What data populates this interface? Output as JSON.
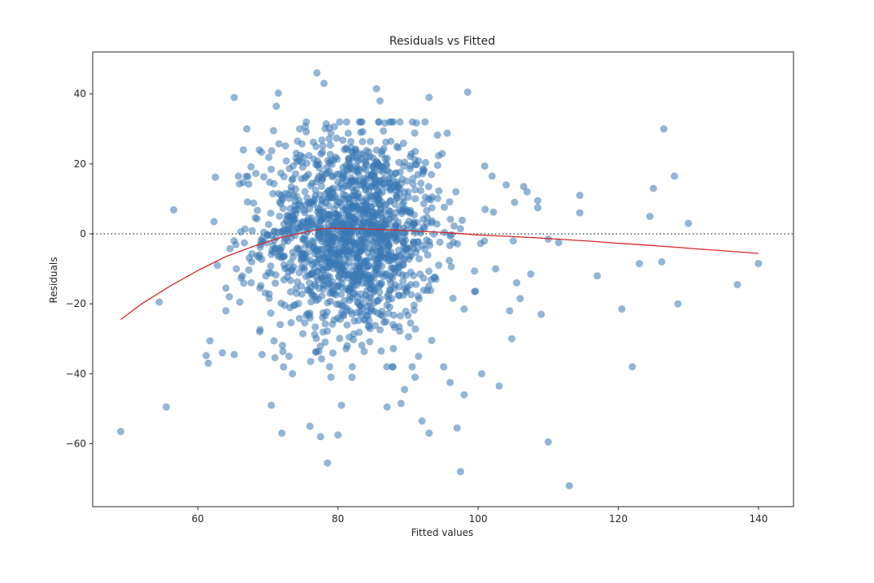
{
  "chart_data": {
    "type": "scatter",
    "title": "Residuals vs Fitted",
    "xlabel": "Fitted values",
    "ylabel": "Residuals",
    "xlim": [
      45,
      145
    ],
    "ylim": [
      -78,
      52
    ],
    "xticks": [
      60,
      80,
      100,
      120,
      140
    ],
    "yticks": [
      40,
      20,
      0,
      -20,
      -40,
      -60
    ],
    "ytick_labels": [
      "40",
      "20",
      "0",
      "−20",
      "−40",
      "−60"
    ],
    "grid": false,
    "reference_line": {
      "y": 0,
      "style": "dotted",
      "color": "#555555"
    },
    "colors": {
      "points": "#3a78b5",
      "smoother": "#d62728"
    },
    "cloud": {
      "count": 1500,
      "x_mean": 82,
      "x_sd": 6.3,
      "y_sd": 14.5
    },
    "points": [
      [
        49,
        -56.5
      ],
      [
        54.5,
        -19.5
      ],
      [
        55.5,
        -49.5
      ],
      [
        61.2,
        -34.8
      ],
      [
        61.5,
        -37
      ],
      [
        62.5,
        16.2
      ],
      [
        62.8,
        -9
      ],
      [
        63.5,
        -34
      ],
      [
        64,
        -22
      ],
      [
        64,
        -15.5
      ],
      [
        64.5,
        -18
      ],
      [
        65.2,
        -34.5
      ],
      [
        65.2,
        39
      ],
      [
        65.5,
        -10
      ],
      [
        66,
        -19.5
      ],
      [
        66.5,
        24
      ],
      [
        67,
        30
      ],
      [
        70.5,
        -49
      ],
      [
        71.5,
        40.2
      ],
      [
        71.2,
        36.5
      ],
      [
        70.8,
        29.5
      ],
      [
        72,
        -57
      ],
      [
        73,
        -35
      ],
      [
        73.5,
        -40
      ],
      [
        76,
        -55
      ],
      [
        77,
        46
      ],
      [
        77.5,
        -58
      ],
      [
        78,
        43
      ],
      [
        78.5,
        -65.5
      ],
      [
        79,
        -41
      ],
      [
        80,
        -57.5
      ],
      [
        80.5,
        -49
      ],
      [
        82,
        -41
      ],
      [
        85.5,
        41.5
      ],
      [
        86,
        38
      ],
      [
        87,
        -49.5
      ],
      [
        89,
        -48.5
      ],
      [
        89.5,
        -44.5
      ],
      [
        91,
        -41
      ],
      [
        91.5,
        -35
      ],
      [
        92,
        -53.5
      ],
      [
        93,
        -57
      ],
      [
        93,
        39
      ],
      [
        96,
        -42.5
      ],
      [
        97,
        -55.5
      ],
      [
        97.5,
        -68
      ],
      [
        98,
        -46
      ],
      [
        98.5,
        40.5
      ],
      [
        98,
        -21.5
      ],
      [
        99.5,
        -16.5
      ],
      [
        100.5,
        -40
      ],
      [
        101,
        7
      ],
      [
        102,
        16.5
      ],
      [
        102.5,
        -10
      ],
      [
        103,
        -43.5
      ],
      [
        104,
        14
      ],
      [
        104.5,
        -22
      ],
      [
        104.8,
        -30
      ],
      [
        105,
        -2
      ],
      [
        105.2,
        9
      ],
      [
        105.5,
        -14
      ],
      [
        106,
        -18.5
      ],
      [
        106.5,
        13.5
      ],
      [
        107,
        12
      ],
      [
        107.5,
        -11.5
      ],
      [
        108.5,
        9.5
      ],
      [
        108.5,
        7.5
      ],
      [
        109,
        -23
      ],
      [
        110,
        -1.5
      ],
      [
        110,
        -59.5
      ],
      [
        111.5,
        -2.5
      ],
      [
        113,
        -72
      ],
      [
        114.5,
        11
      ],
      [
        114.5,
        6
      ],
      [
        117,
        -12
      ],
      [
        120.5,
        -21.5
      ],
      [
        122,
        -38
      ],
      [
        123,
        -8.5
      ],
      [
        124.5,
        5
      ],
      [
        125,
        13
      ],
      [
        126.2,
        -8
      ],
      [
        126.5,
        30
      ],
      [
        128,
        16.5
      ],
      [
        128.5,
        -20
      ],
      [
        130,
        3
      ],
      [
        137,
        -14.5
      ],
      [
        140,
        -8.5
      ]
    ],
    "smoother": [
      [
        49,
        -24.5
      ],
      [
        52,
        -20
      ],
      [
        56,
        -15
      ],
      [
        60,
        -10.5
      ],
      [
        64,
        -6.5
      ],
      [
        68,
        -3.5
      ],
      [
        72,
        -1
      ],
      [
        76,
        0.8
      ],
      [
        78,
        1.5
      ],
      [
        80,
        1.6
      ],
      [
        84,
        1.4
      ],
      [
        88,
        1.1
      ],
      [
        92,
        0.7
      ],
      [
        96,
        0.3
      ],
      [
        100,
        -0.3
      ],
      [
        104,
        -0.7
      ],
      [
        108,
        -1.1
      ],
      [
        112,
        -1.6
      ],
      [
        116,
        -2.1
      ],
      [
        120,
        -2.7
      ],
      [
        124,
        -3.2
      ],
      [
        128,
        -3.8
      ],
      [
        132,
        -4.4
      ],
      [
        136,
        -5
      ],
      [
        140,
        -5.6
      ]
    ]
  }
}
